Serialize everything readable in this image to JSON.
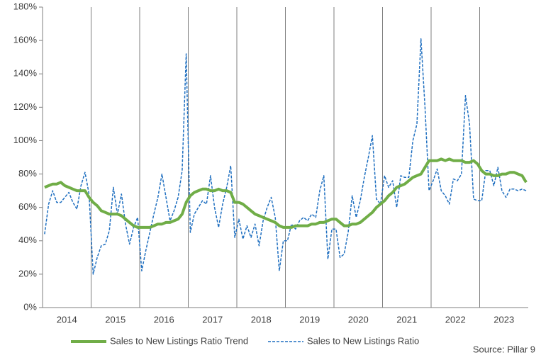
{
  "chart_data": {
    "type": "line",
    "categories": [
      null,
      null,
      null,
      null,
      null,
      "2014",
      null,
      null,
      null,
      null,
      null,
      null,
      null,
      null,
      null,
      null,
      null,
      "2015",
      null,
      null,
      null,
      null,
      null,
      null,
      null,
      null,
      null,
      null,
      null,
      "2016",
      null,
      null,
      null,
      null,
      null,
      null,
      null,
      null,
      null,
      null,
      null,
      "2017",
      null,
      null,
      null,
      null,
      null,
      null,
      null,
      null,
      null,
      null,
      null,
      "2018",
      null,
      null,
      null,
      null,
      null,
      null,
      null,
      null,
      null,
      null,
      null,
      "2019",
      null,
      null,
      null,
      null,
      null,
      null,
      null,
      null,
      null,
      null,
      null,
      "2020",
      null,
      null,
      null,
      null,
      null,
      null,
      null,
      null,
      null,
      null,
      null,
      "2021",
      null,
      null,
      null,
      null,
      null,
      null,
      null,
      null,
      null,
      null,
      null,
      "2022",
      null,
      null,
      null,
      null,
      null,
      null,
      null,
      null,
      null,
      null,
      null,
      "2023",
      null,
      null,
      null,
      null,
      null,
      null
    ],
    "series": [
      {
        "name": "Sales to New Listings Ratio Trend",
        "color": "#70ad47",
        "dashed": false,
        "values": [
          72,
          73,
          74,
          74,
          75,
          73,
          72,
          71,
          70,
          70,
          70,
          66,
          63,
          61,
          58,
          57,
          56,
          56,
          56,
          55,
          53,
          51,
          49,
          48,
          48,
          48,
          48,
          49,
          50,
          50,
          51,
          51,
          52,
          53,
          56,
          63,
          67,
          69,
          70,
          71,
          71,
          70,
          70,
          71,
          70,
          70,
          69,
          63,
          63,
          62,
          60,
          58,
          56,
          55,
          54,
          53,
          52,
          51,
          49,
          48,
          48,
          48,
          49,
          49,
          49,
          49,
          50,
          50,
          51,
          51,
          52,
          53,
          53,
          51,
          49,
          49,
          50,
          50,
          51,
          53,
          55,
          57,
          60,
          62,
          64,
          67,
          69,
          72,
          73,
          74,
          76,
          78,
          79,
          80,
          84,
          88,
          88,
          88,
          89,
          88,
          89,
          88,
          88,
          88,
          87,
          87,
          88,
          86,
          82,
          80,
          80,
          79,
          79,
          80,
          80,
          81,
          81,
          80,
          79,
          75
        ]
      },
      {
        "name": "Sales to New Listings Ratio",
        "color": "#1f6fc0",
        "dashed": true,
        "values": [
          44,
          62,
          70,
          63,
          63,
          66,
          69,
          63,
          59,
          73,
          81,
          68,
          20,
          30,
          37,
          38,
          46,
          72,
          56,
          68,
          50,
          38,
          48,
          54,
          22,
          34,
          45,
          56,
          66,
          80,
          66,
          52,
          58,
          66,
          82,
          152,
          45,
          56,
          60,
          64,
          62,
          79,
          60,
          48,
          62,
          72,
          85,
          42,
          53,
          41,
          49,
          42,
          50,
          37,
          52,
          60,
          66,
          54,
          22,
          40,
          40,
          50,
          47,
          52,
          54,
          52,
          56,
          54,
          70,
          79,
          29,
          47,
          47,
          30,
          32,
          45,
          67,
          54,
          64,
          78,
          90,
          103,
          65,
          62,
          79,
          72,
          76,
          60,
          79,
          78,
          78,
          100,
          110,
          161,
          120,
          70,
          76,
          83,
          70,
          67,
          62,
          77,
          76,
          80,
          127,
          110,
          65,
          64,
          64,
          82,
          82,
          73,
          84,
          70,
          66,
          71,
          71,
          70,
          71,
          70
        ]
      }
    ],
    "ylim": [
      0,
      180
    ],
    "yticks": [
      {
        "value": 0,
        "label": "0%"
      },
      {
        "value": 20,
        "label": "20%"
      },
      {
        "value": 40,
        "label": "40%"
      },
      {
        "value": 60,
        "label": "60%"
      },
      {
        "value": 80,
        "label": "80%"
      },
      {
        "value": 100,
        "label": "100%"
      },
      {
        "value": 120,
        "label": "120%"
      },
      {
        "value": 140,
        "label": "140%"
      },
      {
        "value": 160,
        "label": "160%"
      },
      {
        "value": 180,
        "label": "180%"
      }
    ],
    "grid": false,
    "legend": "bottom",
    "source": "Source: Pillar 9"
  }
}
